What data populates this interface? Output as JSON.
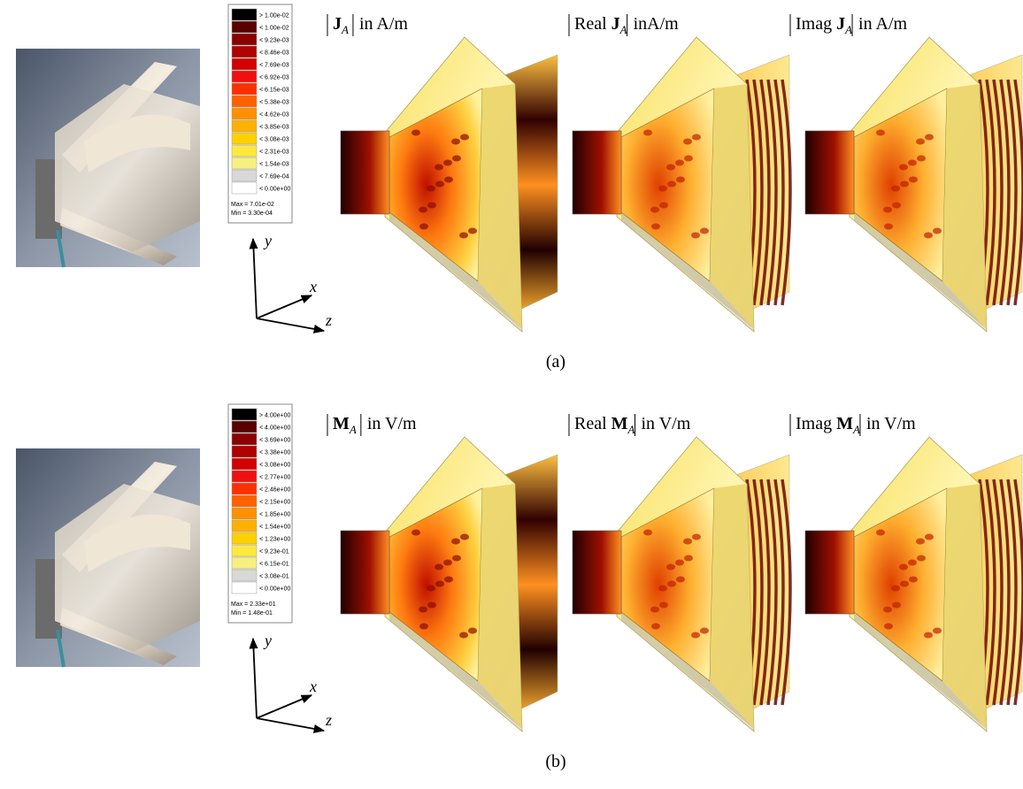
{
  "panels": [
    {
      "legend": {
        "entries": [
          "> 1.00e-02",
          "< 1.00e-02",
          "< 9.23e-03",
          "< 8.46e-03",
          "< 7.69e-03",
          "< 6.92e-03",
          "< 6.15e-03",
          "< 5.38e-03",
          "< 4.62e-03",
          "< 3.85e-03",
          "< 3.08e-03",
          "< 2.31e-03",
          "< 1.54e-03",
          "< 7.69e-04",
          "< 0.00e+00"
        ],
        "max": "Max = 7.01e-02",
        "min": "Min = 3.30e-04"
      },
      "titles": [
        {
          "symbol": "J",
          "subscript": "A",
          "suffix": "in A/m"
        },
        {
          "prefix": "Real",
          "symbol": "J",
          "subscript": "A",
          "suffix": "inA/m"
        },
        {
          "prefix": "Imag",
          "symbol": "J",
          "subscript": "A",
          "suffix": "in A/m"
        }
      ],
      "axes": {
        "y": "y",
        "x": "x",
        "z": "z"
      },
      "caption": "(a)"
    },
    {
      "legend": {
        "entries": [
          "> 4.00e+00",
          "< 4.00e+00",
          "< 3.69e+00",
          "< 3.38e+00",
          "< 3.08e+00",
          "< 2.77e+00",
          "< 2.46e+00",
          "< 2.15e+00",
          "< 1.85e+00",
          "< 1.54e+00",
          "< 1.23e+00",
          "< 9.23e-01",
          "< 6.15e-01",
          "< 3.08e-01",
          "< 0.00e+00"
        ],
        "max": "Max = 2.33e+01",
        "min": "Min = 1.48e-01"
      },
      "titles": [
        {
          "symbol": "M",
          "subscript": "A",
          "suffix": "in V/m"
        },
        {
          "prefix": "Real",
          "symbol": "M",
          "subscript": "A",
          "suffix": "in V/m"
        },
        {
          "prefix": "Imag",
          "symbol": "M",
          "subscript": "A",
          "suffix": "in V/m"
        }
      ],
      "axes": {
        "y": "y",
        "x": "x",
        "z": "z"
      },
      "caption": "(b)"
    }
  ],
  "legend_colors": [
    "#000000",
    "#5a0000",
    "#8b0000",
    "#b00000",
    "#d40000",
    "#f01010",
    "#ff3000",
    "#ff6000",
    "#ff9000",
    "#ffb000",
    "#ffd000",
    "#ffe840",
    "#f5f080",
    "#d8d8d8",
    "#ffffff"
  ]
}
